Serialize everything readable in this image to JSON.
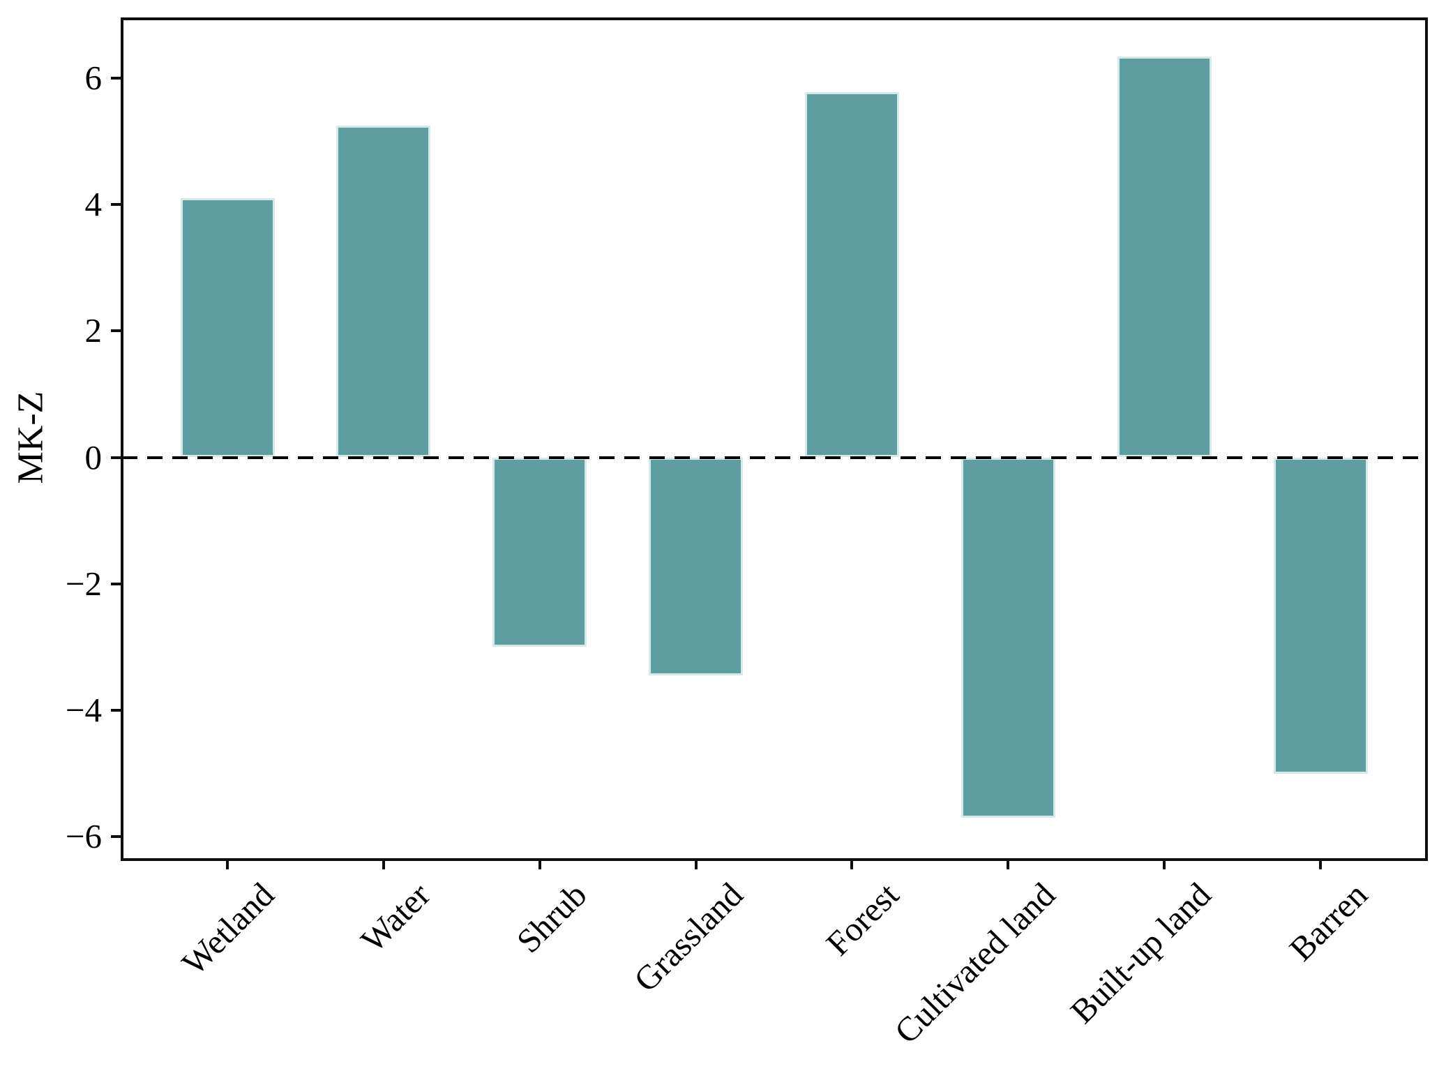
{
  "figure": {
    "background": "#ffffff"
  },
  "chart_data": {
    "type": "bar",
    "title": "",
    "xlabel": "",
    "ylabel": "MK-Z",
    "categories": [
      "Wetland",
      "Water",
      "Shrub",
      "Grassland",
      "Forest",
      "Cultivated land",
      "Built-up land",
      "Barren"
    ],
    "values": [
      4.1,
      5.25,
      -3.0,
      -3.45,
      5.78,
      -5.7,
      6.34,
      -5.0
    ],
    "ylim": [
      -6.34,
      6.94
    ],
    "yticks": [
      6,
      4,
      2,
      0,
      -2,
      -4,
      -6
    ],
    "ytick_labels": [
      "6",
      "4",
      "2",
      "0",
      "−2",
      "−4",
      "−6"
    ],
    "grid": false,
    "legend": false,
    "bar_color": "#5f9ea0",
    "bar_edge_color": "#d6e9e9",
    "axis_color": "#0d0d0d",
    "zero_line": {
      "value": 0,
      "style": "dashed",
      "color": "#000000"
    }
  }
}
